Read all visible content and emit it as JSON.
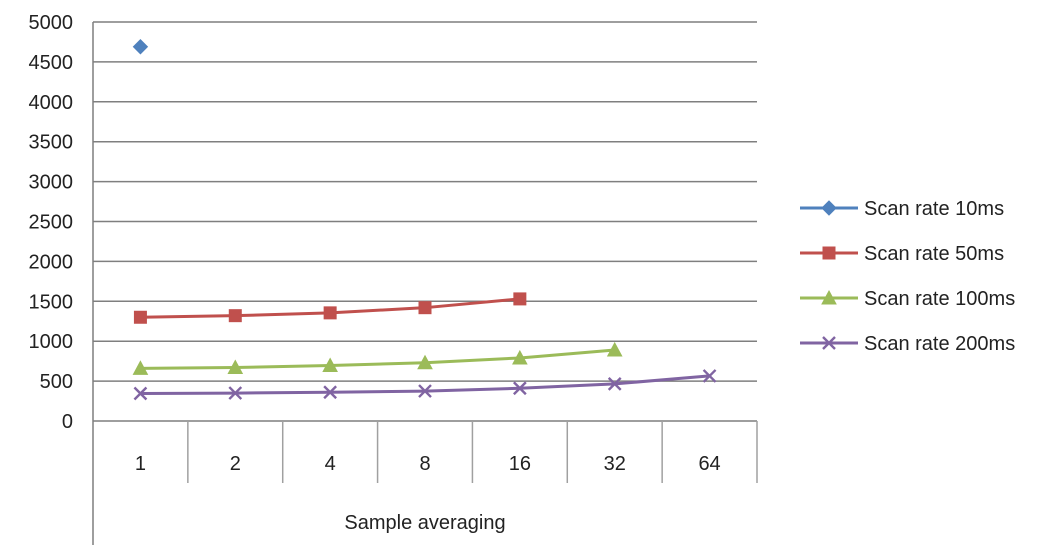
{
  "chart_data": {
    "type": "line",
    "categories": [
      "1",
      "2",
      "4",
      "8",
      "16",
      "32",
      "64"
    ],
    "xlabel": "Sample averaging",
    "ylabel": "",
    "ylim": [
      0,
      5000
    ],
    "yticks": [
      0,
      500,
      1000,
      1500,
      2000,
      2500,
      3000,
      3500,
      4000,
      4500,
      5000
    ],
    "grid": "horizontal",
    "legend_position": "right",
    "series": [
      {
        "name": "Scan rate 10ms",
        "color": "#4f81bd",
        "marker": "diamond",
        "values": [
          4690,
          null,
          null,
          null,
          null,
          null,
          null
        ]
      },
      {
        "name": "Scan rate 50ms",
        "color": "#c0504d",
        "marker": "square",
        "values": [
          1300,
          1320,
          1355,
          1420,
          1530,
          null,
          null
        ]
      },
      {
        "name": "Scan rate 100ms",
        "color": "#9bbb59",
        "marker": "triangle",
        "values": [
          660,
          670,
          695,
          730,
          790,
          890,
          null
        ]
      },
      {
        "name": "Scan rate 200ms",
        "color": "#8064a2",
        "marker": "x",
        "values": [
          345,
          350,
          360,
          375,
          410,
          465,
          565
        ]
      }
    ]
  }
}
